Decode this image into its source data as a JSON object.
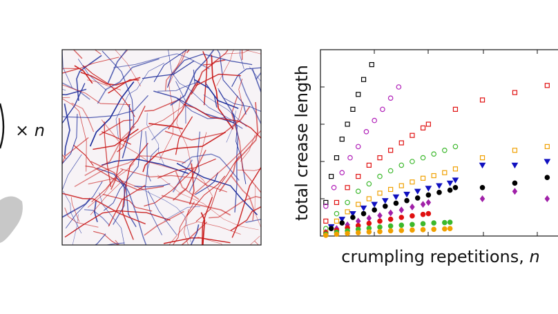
{
  "multiplier": {
    "symbol": "×",
    "variable": "n"
  },
  "chart_data": {
    "type": "scatter",
    "ylabel": "total crease length",
    "xlabel": "crumpling repetitions,",
    "xlabel_variable": "n",
    "xlim": [
      0,
      88
    ],
    "ylim": [
      0,
      5
    ],
    "series": [
      {
        "color": "#000000",
        "marker": "square-open",
        "x": [
          2,
          4,
          6,
          8,
          10,
          12,
          14,
          16,
          19
        ],
        "values": [
          0.9,
          1.6,
          2.1,
          2.6,
          3.0,
          3.4,
          3.8,
          4.2,
          4.6
        ]
      },
      {
        "color": "#b01fb8",
        "marker": "circle-open",
        "x": [
          2,
          5,
          8,
          11,
          14,
          17,
          20,
          23,
          26,
          29
        ],
        "values": [
          0.8,
          1.3,
          1.7,
          2.1,
          2.4,
          2.8,
          3.1,
          3.4,
          3.7,
          4.0
        ]
      },
      {
        "color": "#e01010",
        "marker": "square-open",
        "x": [
          2,
          6,
          10,
          14,
          18,
          22,
          26,
          30,
          34,
          38,
          40,
          50,
          60,
          72,
          84
        ],
        "values": [
          0.4,
          0.9,
          1.3,
          1.6,
          1.9,
          2.1,
          2.3,
          2.5,
          2.7,
          2.9,
          3.0,
          3.4,
          3.65,
          3.85,
          4.04
        ]
      },
      {
        "color": "#3cb82c",
        "marker": "circle-open",
        "x": [
          2,
          6,
          10,
          14,
          18,
          22,
          26,
          30,
          34,
          38,
          42,
          46,
          50
        ],
        "values": [
          0.2,
          0.6,
          0.9,
          1.2,
          1.4,
          1.6,
          1.75,
          1.9,
          2.0,
          2.1,
          2.2,
          2.3,
          2.4
        ]
      },
      {
        "color": "#f0a000",
        "marker": "square-open",
        "x": [
          2,
          6,
          10,
          14,
          18,
          22,
          26,
          30,
          34,
          38,
          42,
          46,
          50,
          60,
          72,
          84
        ],
        "values": [
          0.1,
          0.4,
          0.65,
          0.85,
          1.0,
          1.15,
          1.25,
          1.35,
          1.45,
          1.55,
          1.62,
          1.7,
          1.8,
          2.1,
          2.3,
          2.4
        ]
      },
      {
        "color": "#1010c0",
        "marker": "triangle-filled",
        "x": [
          4,
          8,
          12,
          16,
          20,
          24,
          28,
          32,
          36,
          40,
          44,
          48,
          50,
          60,
          72,
          84
        ],
        "values": [
          0.25,
          0.45,
          0.6,
          0.75,
          0.85,
          0.95,
          1.05,
          1.12,
          1.2,
          1.28,
          1.35,
          1.42,
          1.5,
          1.9,
          1.9,
          2.0
        ]
      },
      {
        "color": "#000000",
        "marker": "circle-filled",
        "x": [
          4,
          8,
          12,
          16,
          20,
          24,
          28,
          32,
          36,
          40,
          44,
          48,
          50,
          60,
          72,
          84
        ],
        "values": [
          0.2,
          0.35,
          0.5,
          0.6,
          0.7,
          0.8,
          0.88,
          0.95,
          1.02,
          1.1,
          1.17,
          1.23,
          1.3,
          1.3,
          1.42,
          1.57
        ]
      },
      {
        "color": "#a020a8",
        "marker": "diamond-filled",
        "x": [
          2,
          6,
          10,
          14,
          18,
          22,
          26,
          30,
          34,
          38,
          40,
          60,
          72,
          84
        ],
        "values": [
          0.1,
          0.2,
          0.3,
          0.4,
          0.48,
          0.55,
          0.62,
          0.7,
          0.78,
          0.85,
          0.9,
          1.0,
          1.2,
          1.0
        ]
      },
      {
        "color": "#e01010",
        "marker": "circle-filled",
        "x": [
          2,
          6,
          10,
          14,
          18,
          22,
          26,
          30,
          34,
          38,
          40
        ],
        "values": [
          0.08,
          0.15,
          0.22,
          0.28,
          0.34,
          0.4,
          0.45,
          0.5,
          0.54,
          0.58,
          0.6
        ]
      },
      {
        "color": "#3cb82c",
        "marker": "circle-filled",
        "x": [
          2,
          6,
          10,
          14,
          18,
          22,
          26,
          30,
          34,
          38,
          42,
          46,
          48
        ],
        "values": [
          0.05,
          0.1,
          0.14,
          0.18,
          0.21,
          0.24,
          0.27,
          0.29,
          0.31,
          0.33,
          0.35,
          0.36,
          0.37
        ]
      },
      {
        "color": "#f0a000",
        "marker": "circle-filled",
        "x": [
          2,
          6,
          10,
          14,
          18,
          22,
          26,
          30,
          34,
          38,
          42,
          46,
          48
        ],
        "values": [
          0.02,
          0.05,
          0.07,
          0.09,
          0.11,
          0.12,
          0.14,
          0.15,
          0.16,
          0.17,
          0.18,
          0.19,
          0.2
        ]
      }
    ]
  }
}
